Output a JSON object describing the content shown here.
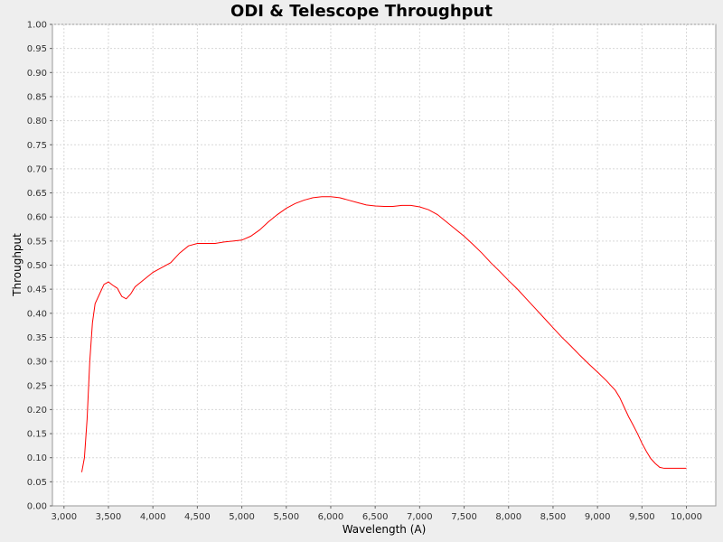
{
  "chart_data": {
    "type": "line",
    "title": "ODI & Telescope Throughput",
    "xlabel": "Wavelength (A)",
    "ylabel": "Throughput",
    "xlim": [
      2870,
      10330
    ],
    "ylim": [
      0,
      1
    ],
    "grid": true,
    "legend": "none",
    "x_ticks": [
      "3,000",
      "3,500",
      "4,000",
      "4,500",
      "5,000",
      "5,500",
      "6,000",
      "6,500",
      "7,000",
      "7,500",
      "8,000",
      "8,500",
      "9,000",
      "9,500",
      "10,000"
    ],
    "y_ticks": [
      "0.00",
      "0.05",
      "0.10",
      "0.15",
      "0.20",
      "0.25",
      "0.30",
      "0.35",
      "0.40",
      "0.45",
      "0.50",
      "0.55",
      "0.60",
      "0.65",
      "0.70",
      "0.75",
      "0.80",
      "0.85",
      "0.90",
      "0.95",
      "1.00"
    ],
    "colors": {
      "line": "#ff0000",
      "plot_bg": "#ffffff",
      "grid": "#d8d8d8",
      "page_bg": "#eeeeee"
    },
    "series": [
      {
        "x": [
          3200,
          3230,
          3260,
          3290,
          3320,
          3350,
          3400,
          3450,
          3500,
          3550,
          3600,
          3650,
          3700,
          3750,
          3800,
          3900,
          4000,
          4100,
          4200,
          4300,
          4400,
          4500,
          4600,
          4700,
          4800,
          4900,
          5000,
          5100,
          5200,
          5300,
          5400,
          5500,
          5600,
          5700,
          5800,
          5900,
          6000,
          6100,
          6200,
          6300,
          6400,
          6500,
          6600,
          6700,
          6800,
          6900,
          7000,
          7100,
          7200,
          7300,
          7400,
          7500,
          7600,
          7700,
          7800,
          7900,
          8000,
          8100,
          8200,
          8300,
          8400,
          8500,
          8600,
          8700,
          8800,
          8900,
          9000,
          9100,
          9200,
          9250,
          9300,
          9350,
          9400,
          9450,
          9500,
          9550,
          9600,
          9650,
          9700,
          9750,
          9800,
          9850,
          9900,
          9950,
          10000
        ],
        "y": [
          0.07,
          0.1,
          0.18,
          0.3,
          0.38,
          0.42,
          0.44,
          0.46,
          0.465,
          0.458,
          0.452,
          0.435,
          0.43,
          0.44,
          0.455,
          0.47,
          0.485,
          0.495,
          0.505,
          0.525,
          0.54,
          0.545,
          0.545,
          0.545,
          0.548,
          0.55,
          0.552,
          0.56,
          0.573,
          0.59,
          0.605,
          0.618,
          0.628,
          0.635,
          0.64,
          0.642,
          0.642,
          0.64,
          0.635,
          0.63,
          0.625,
          0.623,
          0.622,
          0.622,
          0.624,
          0.624,
          0.621,
          0.615,
          0.605,
          0.59,
          0.575,
          0.56,
          0.543,
          0.525,
          0.505,
          0.487,
          0.468,
          0.45,
          0.43,
          0.41,
          0.39,
          0.37,
          0.35,
          0.332,
          0.313,
          0.295,
          0.278,
          0.26,
          0.24,
          0.225,
          0.205,
          0.185,
          0.168,
          0.15,
          0.13,
          0.113,
          0.098,
          0.088,
          0.08,
          0.078,
          0.078,
          0.078,
          0.078,
          0.078,
          0.078
        ]
      }
    ]
  }
}
